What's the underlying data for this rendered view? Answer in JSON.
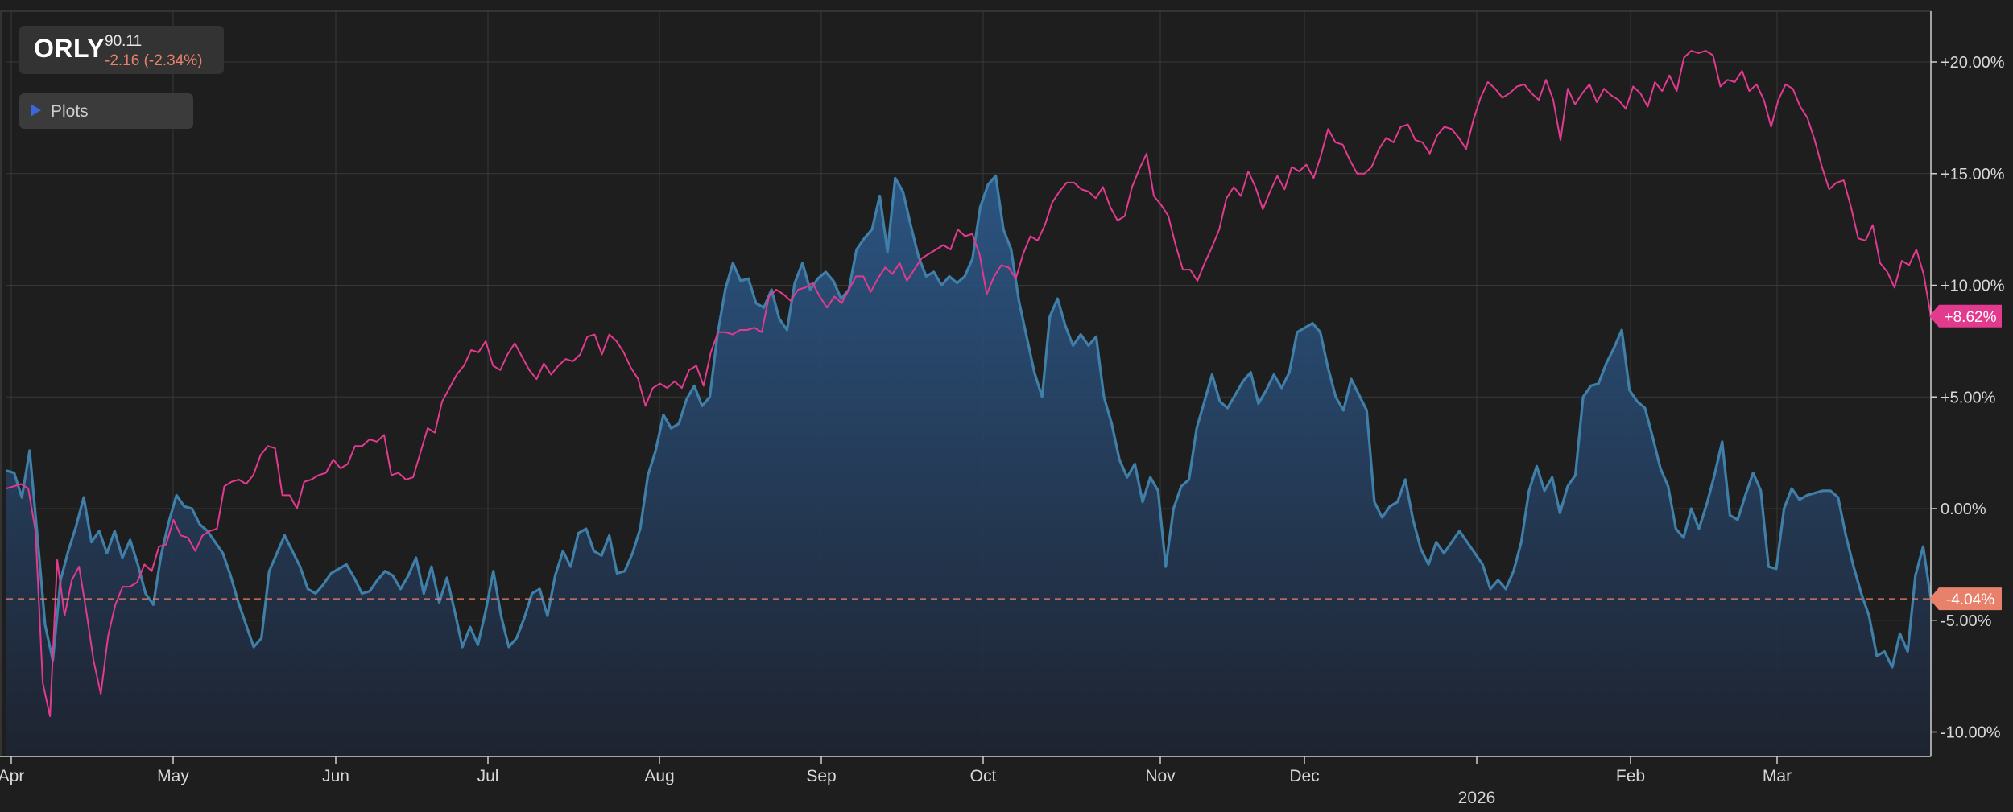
{
  "ticker": {
    "symbol": "ORLY",
    "price": "90.11",
    "change": "-2.16 (-2.34%)"
  },
  "controls": {
    "plots_label": "Plots"
  },
  "colors": {
    "background": "#1e1e1e",
    "grid": "#383838",
    "area_line": "#3f7fa8",
    "area_fill_top": "#2c5a8c",
    "area_fill_bottom": "#1e2330",
    "comparison_line": "#e23a8f",
    "current_marker": "#e8816c"
  },
  "chart_data": {
    "type": "area",
    "x_labels": [
      "Apr",
      "May",
      "Jun",
      "Jul",
      "Aug",
      "Sep",
      "Oct",
      "Nov",
      "Dec",
      "Feb",
      "Mar"
    ],
    "year_label": "2026",
    "y_ticks": [
      "+20.00%",
      "+15.00%",
      "+10.00%",
      "+5.00%",
      "0.00%",
      "-5.00%",
      "-10.00%"
    ],
    "ylim": [
      -11,
      22.5
    ],
    "current_value_label": "-4.04%",
    "comparison_value_label": "+8.62%",
    "series": [
      {
        "style": "area",
        "values": [
          1.7,
          1.6,
          0.5,
          2.6,
          -1.2,
          -5.2,
          -6.8,
          -3.2,
          -1.9,
          -0.8,
          0.5,
          -1.5,
          -1.0,
          -2.0,
          -1.0,
          -2.2,
          -1.4,
          -2.5,
          -3.8,
          -4.3,
          -2.1,
          -0.6,
          0.6,
          0.1,
          0.0,
          -0.7,
          -1.0,
          -1.5,
          -2.0,
          -3.0,
          -4.2,
          -5.2,
          -6.2,
          -5.8,
          -2.8,
          -2.0,
          -1.2,
          -1.9,
          -2.6,
          -3.6,
          -3.8,
          -3.4,
          -2.9,
          -2.7,
          -2.5,
          -3.1,
          -3.8,
          -3.7,
          -3.2,
          -2.8,
          -3.0,
          -3.6,
          -3.0,
          -2.2,
          -3.8,
          -2.6,
          -4.2,
          -3.1,
          -4.6,
          -6.2,
          -5.3,
          -6.1,
          -4.6,
          -2.8,
          -4.8,
          -6.2,
          -5.8,
          -4.9,
          -3.8,
          -3.6,
          -4.8,
          -3.0,
          -1.9,
          -2.6,
          -1.1,
          -0.9,
          -1.9,
          -2.1,
          -1.2,
          -2.9,
          -2.8,
          -2.0,
          -0.9,
          1.5,
          2.6,
          4.2,
          3.6,
          3.8,
          4.9,
          5.5,
          4.6,
          5.0,
          7.8,
          9.8,
          11.0,
          10.2,
          10.3,
          9.2,
          9.0,
          9.8,
          8.5,
          8.0,
          10.1,
          11.0,
          9.8,
          10.3,
          10.6,
          10.2,
          9.4,
          9.8,
          11.6,
          12.1,
          12.5,
          14.0,
          11.5,
          14.8,
          14.2,
          12.7,
          11.3,
          10.4,
          10.6,
          10.0,
          10.4,
          10.1,
          10.4,
          11.2,
          13.5,
          14.5,
          14.9,
          12.5,
          11.6,
          9.3,
          7.7,
          6.1,
          5.0,
          8.6,
          9.4,
          8.2,
          7.3,
          7.8,
          7.3,
          7.7,
          5.0,
          3.8,
          2.2,
          1.4,
          2.0,
          0.3,
          1.4,
          0.8,
          -2.6,
          0.0,
          1.0,
          1.3,
          3.6,
          4.8,
          6.0,
          4.8,
          4.5,
          5.1,
          5.7,
          6.1,
          4.7,
          5.3,
          6.0,
          5.4,
          6.1,
          7.9,
          8.1,
          8.3,
          7.9,
          6.3,
          5.0,
          4.4,
          5.8,
          5.1,
          4.4,
          0.3,
          -0.4,
          0.1,
          0.3,
          1.3,
          -0.5,
          -1.8,
          -2.5,
          -1.5,
          -2.0,
          -1.5,
          -1.0,
          -1.5,
          -2.0,
          -2.5,
          -3.6,
          -3.2,
          -3.6,
          -2.8,
          -1.5,
          0.8,
          1.9,
          0.8,
          1.4,
          -0.2,
          1.0,
          1.5,
          5.0,
          5.5,
          5.6,
          6.5,
          7.2,
          8.0,
          5.3,
          4.8,
          4.5,
          3.2,
          1.8,
          1.0,
          -0.9,
          -1.3,
          0.0,
          -0.9,
          0.2,
          1.5,
          3.0,
          -0.3,
          -0.5,
          0.6,
          1.6,
          0.8,
          -2.6,
          -2.7,
          0.0,
          0.9,
          0.4,
          0.6,
          0.7,
          0.8,
          0.8,
          0.5,
          -1.2,
          -2.6,
          -3.8,
          -4.8,
          -6.6,
          -6.4,
          -7.1,
          -5.6,
          -6.4,
          -3.0,
          -1.7,
          -4.04
        ]
      },
      {
        "style": "line",
        "values": [
          0.9,
          1.0,
          1.1,
          0.9,
          -1.0,
          -7.8,
          -9.3,
          -2.3,
          -4.8,
          -3.2,
          -2.6,
          -4.6,
          -6.8,
          -8.3,
          -5.7,
          -4.3,
          -3.5,
          -3.5,
          -3.3,
          -2.5,
          -2.8,
          -1.7,
          -1.6,
          -0.5,
          -1.2,
          -1.3,
          -1.9,
          -1.2,
          -1.0,
          -0.9,
          1.0,
          1.2,
          1.3,
          1.1,
          1.5,
          2.4,
          2.8,
          2.7,
          0.6,
          0.6,
          0.0,
          1.2,
          1.3,
          1.5,
          1.6,
          2.2,
          1.8,
          2.0,
          2.8,
          2.8,
          3.1,
          3.0,
          3.3,
          1.5,
          1.6,
          1.3,
          1.4,
          2.5,
          3.6,
          3.4,
          4.8,
          5.4,
          6.0,
          6.4,
          7.1,
          7.0,
          7.5,
          6.4,
          6.2,
          6.9,
          7.4,
          6.8,
          6.2,
          5.8,
          6.5,
          6.0,
          6.4,
          6.7,
          6.6,
          6.9,
          7.7,
          7.8,
          6.9,
          7.8,
          7.5,
          7.0,
          6.3,
          5.8,
          4.6,
          5.4,
          5.6,
          5.4,
          5.7,
          5.4,
          6.2,
          6.4,
          5.5,
          7.0,
          7.9,
          7.9,
          7.8,
          8.0,
          8.0,
          8.1,
          7.9,
          9.5,
          9.8,
          9.6,
          9.3,
          9.8,
          9.9,
          10.1,
          9.5,
          9.0,
          9.5,
          9.2,
          9.8,
          10.4,
          10.4,
          9.7,
          10.3,
          10.8,
          10.5,
          11.0,
          10.2,
          10.7,
          11.2,
          11.4,
          11.6,
          11.8,
          11.6,
          12.5,
          12.2,
          12.3,
          11.4,
          9.6,
          10.4,
          10.9,
          10.8,
          10.3,
          11.4,
          12.2,
          12.0,
          12.7,
          13.7,
          14.2,
          14.6,
          14.6,
          14.3,
          14.2,
          13.9,
          14.4,
          13.5,
          12.9,
          13.1,
          14.4,
          15.2,
          15.9,
          14.0,
          13.6,
          13.1,
          11.8,
          10.7,
          10.7,
          10.2,
          11.0,
          11.7,
          12.5,
          13.9,
          14.4,
          14.0,
          15.1,
          14.4,
          13.4,
          14.2,
          14.9,
          14.3,
          15.3,
          15.1,
          15.4,
          14.8,
          15.8,
          17.0,
          16.4,
          16.3,
          15.6,
          15.0,
          15.0,
          15.3,
          16.1,
          16.6,
          16.4,
          17.1,
          17.2,
          16.5,
          16.4,
          15.9,
          16.7,
          17.1,
          17.0,
          16.6,
          16.1,
          17.4,
          18.4,
          19.1,
          18.8,
          18.4,
          18.6,
          18.9,
          19.0,
          18.6,
          18.3,
          19.2,
          18.3,
          16.5,
          18.8,
          18.1,
          18.6,
          19.0,
          18.2,
          18.8,
          18.5,
          18.3,
          17.9,
          18.9,
          18.6,
          18.0,
          19.1,
          18.7,
          19.4,
          18.7,
          20.2,
          20.5,
          20.4,
          20.5,
          20.3,
          18.9,
          19.2,
          19.1,
          19.6,
          18.7,
          19.0,
          18.3,
          17.1,
          18.3,
          19.0,
          18.8,
          18.0,
          17.5,
          16.5,
          15.3,
          14.3,
          14.6,
          14.7,
          13.5,
          12.1,
          12.0,
          12.7,
          11.0,
          10.6,
          9.9,
          11.1,
          10.9,
          11.6,
          10.5,
          8.62
        ]
      }
    ]
  }
}
